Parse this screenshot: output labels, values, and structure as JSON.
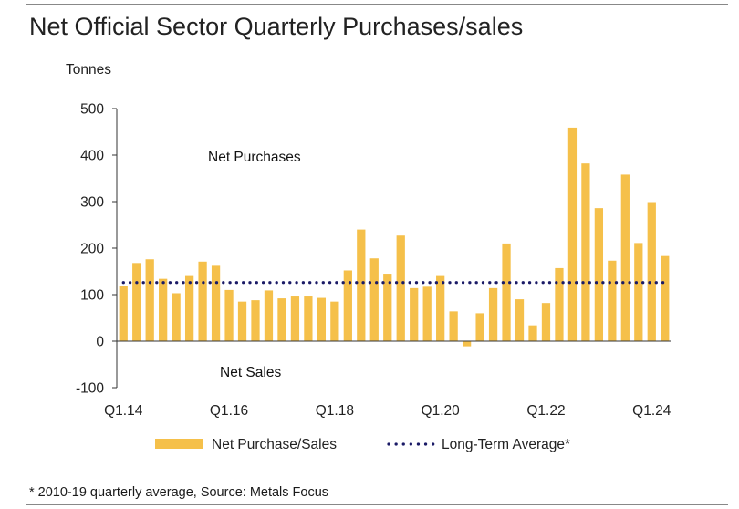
{
  "title": "Net Official Sector Quarterly Purchases/sales",
  "footnote": "* 2010-19 quarterly average, Source: Metals Focus",
  "chart_data": {
    "type": "bar",
    "title": "Net Official Sector Quarterly Purchases/sales",
    "ylabel": "Tonnes",
    "ylim": [
      -100,
      500
    ],
    "yticks": [
      -100,
      0,
      100,
      200,
      300,
      400,
      500
    ],
    "ytick_labels": [
      "-100",
      "0",
      "100",
      "200",
      "300",
      "400",
      "500"
    ],
    "xtick_labels": [
      "Q1.14",
      "Q1.16",
      "Q1.18",
      "Q1.20",
      "Q1.22",
      "Q1.24"
    ],
    "categories": [
      "Q1.14",
      "Q2.14",
      "Q3.14",
      "Q4.14",
      "Q1.15",
      "Q2.15",
      "Q3.15",
      "Q4.15",
      "Q1.16",
      "Q2.16",
      "Q3.16",
      "Q4.16",
      "Q1.17",
      "Q2.17",
      "Q3.17",
      "Q4.17",
      "Q1.18",
      "Q2.18",
      "Q3.18",
      "Q4.18",
      "Q1.19",
      "Q2.19",
      "Q3.19",
      "Q4.19",
      "Q1.20",
      "Q2.20",
      "Q3.20",
      "Q4.20",
      "Q1.21",
      "Q2.21",
      "Q3.21",
      "Q4.21",
      "Q1.22",
      "Q2.22",
      "Q3.22",
      "Q4.22",
      "Q1.23",
      "Q2.23",
      "Q3.23",
      "Q4.23",
      "Q1.24",
      "Q2.24"
    ],
    "series": [
      {
        "name": "Net Purchase/Sales",
        "color": "#f5c04a",
        "values": [
          118,
          168,
          176,
          134,
          103,
          140,
          171,
          162,
          110,
          85,
          88,
          109,
          92,
          96,
          96,
          93,
          85,
          152,
          240,
          178,
          145,
          227,
          114,
          117,
          140,
          64,
          -11,
          60,
          114,
          210,
          90,
          34,
          82,
          157,
          459,
          382,
          286,
          173,
          358,
          211,
          299,
          183
        ]
      },
      {
        "name": "Long-Term Average*",
        "color": "#1a1a66",
        "style": "dotted",
        "value": 126
      }
    ],
    "annotations": [
      "Net Purchases",
      "Net Sales"
    ],
    "legend_position": "bottom"
  }
}
